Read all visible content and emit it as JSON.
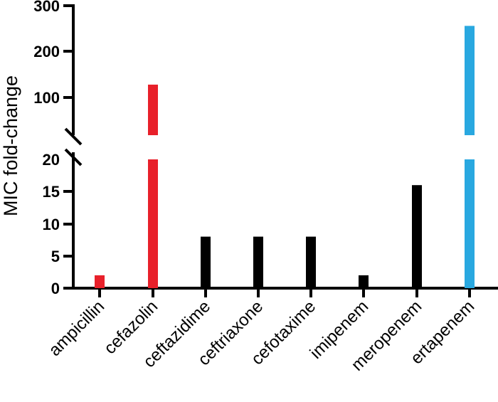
{
  "chart_data": {
    "type": "bar",
    "title": "",
    "xlabel": "",
    "ylabel": "MIC fold-change",
    "categories": [
      "ampicillin",
      "cefazolin",
      "ceftazidime",
      "ceftriaxone",
      "cefotaxime",
      "imipenem",
      "meropenem",
      "ertapenem"
    ],
    "values": [
      2,
      128,
      8,
      8,
      8,
      2,
      16,
      256
    ],
    "colors": [
      "#E8202A",
      "#E8202A",
      "#000000",
      "#000000",
      "#000000",
      "#000000",
      "#000000",
      "#29A8E0"
    ],
    "y_axis": {
      "broken": true,
      "lower_segment": {
        "range": [
          0,
          20
        ],
        "ticks": [
          "0",
          "5",
          "10",
          "15",
          "20"
        ]
      },
      "upper_segment": {
        "range": [
          20,
          300
        ],
        "ticks": [
          "100",
          "200",
          "300"
        ]
      }
    },
    "ylim": [
      0,
      300
    ],
    "grid": false,
    "legend": null
  },
  "labels": {
    "y_title": "MIC fold-change",
    "y_ticks_lower": [
      "0",
      "5",
      "10",
      "15",
      "20"
    ],
    "y_ticks_upper": [
      "100",
      "200",
      "300"
    ],
    "categories": [
      "ampicillin",
      "cefazolin",
      "ceftazidime",
      "ceftriaxone",
      "cefotaxime",
      "imipenem",
      "meropenem",
      "ertapenem"
    ]
  }
}
